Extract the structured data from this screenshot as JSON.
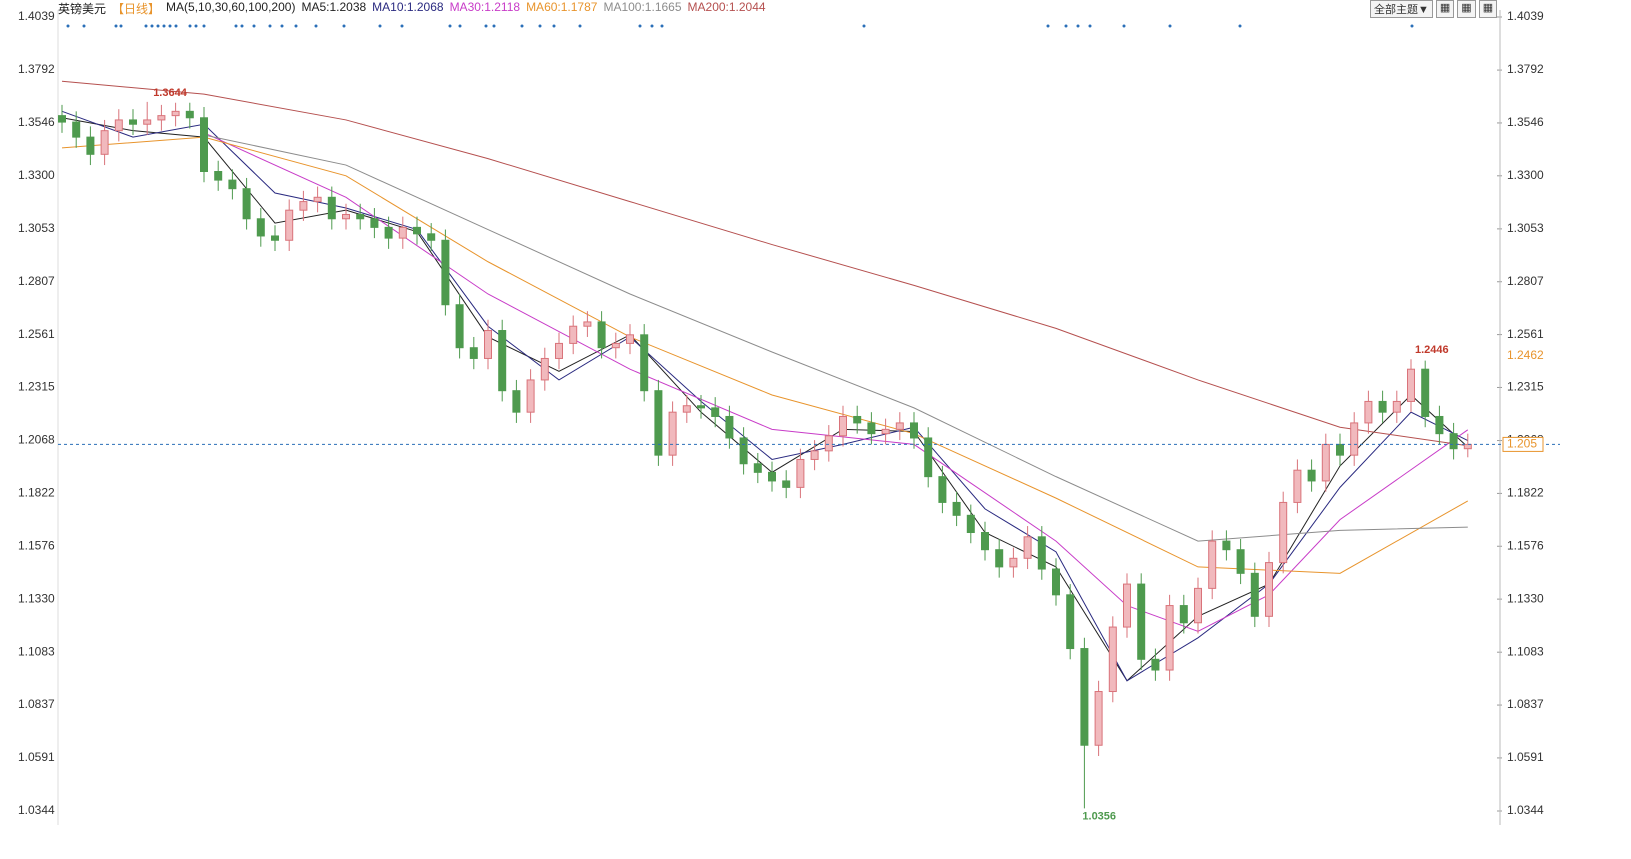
{
  "chart_data": {
    "type": "candlestick",
    "title": "英镑美元",
    "period": "【日线】",
    "ma_params": "MA(5,10,30,60,100,200)",
    "theme_button": "全部主题▼",
    "ylim": [
      1.0344,
      1.4039
    ],
    "yticks": [
      1.4039,
      1.3792,
      1.3546,
      {
        "value": 1.33,
        "label": "1.3300"
      },
      1.3053,
      1.2807,
      1.2561,
      1.2315,
      1.2068,
      1.1822,
      1.1576,
      {
        "value": 1.133,
        "label": "1.1330"
      },
      1.1083,
      1.0837,
      1.0591,
      1.0344
    ],
    "up_color": "#d9737a",
    "down_color": "#4e9a4e",
    "open": [
      1.358,
      1.355,
      1.348,
      1.34,
      1.351,
      1.356,
      1.354,
      1.356,
      1.358,
      1.36,
      1.357,
      1.332,
      1.328,
      1.324,
      1.31,
      1.302,
      1.3,
      1.314,
      1.318,
      1.32,
      1.31,
      1.312,
      1.31,
      1.306,
      1.301,
      1.306,
      1.303,
      1.3,
      1.27,
      1.25,
      1.245,
      1.258,
      1.23,
      1.22,
      1.235,
      1.245,
      1.252,
      1.26,
      1.262,
      1.25,
      1.252,
      1.256,
      1.23,
      1.2,
      1.22,
      1.223,
      1.222,
      1.218,
      1.208,
      1.196,
      1.192,
      1.188,
      1.185,
      1.198,
      1.202,
      1.209,
      1.218,
      1.215,
      1.21,
      1.212,
      1.215,
      1.208,
      1.19,
      1.178,
      1.172,
      1.164,
      1.156,
      1.148,
      1.152,
      1.162,
      1.147,
      1.135,
      1.11,
      1.065,
      1.09,
      1.12,
      1.14,
      1.105,
      1.1,
      1.13,
      1.122,
      1.138,
      1.16,
      1.156,
      1.145,
      1.125,
      1.15,
      1.178,
      1.193,
      1.188,
      1.205,
      1.2,
      1.215,
      1.225,
      1.22,
      1.225,
      1.24,
      1.218,
      1.21,
      1.203
    ],
    "high": [
      1.363,
      1.36,
      1.353,
      1.356,
      1.361,
      1.361,
      1.3644,
      1.363,
      1.364,
      1.364,
      1.362,
      1.337,
      1.333,
      1.329,
      1.315,
      1.307,
      1.319,
      1.323,
      1.325,
      1.325,
      1.317,
      1.317,
      1.315,
      1.311,
      1.311,
      1.311,
      1.308,
      1.305,
      1.275,
      1.255,
      1.263,
      1.263,
      1.235,
      1.24,
      1.25,
      1.257,
      1.265,
      1.267,
      1.267,
      1.257,
      1.261,
      1.261,
      1.235,
      1.225,
      1.228,
      1.228,
      1.227,
      1.223,
      1.213,
      1.201,
      1.197,
      1.193,
      1.203,
      1.207,
      1.214,
      1.223,
      1.223,
      1.22,
      1.217,
      1.22,
      1.22,
      1.213,
      1.195,
      1.183,
      1.177,
      1.169,
      1.161,
      1.157,
      1.167,
      1.167,
      1.152,
      1.14,
      1.115,
      1.095,
      1.125,
      1.145,
      1.145,
      1.11,
      1.135,
      1.135,
      1.143,
      1.165,
      1.165,
      1.161,
      1.15,
      1.155,
      1.183,
      1.198,
      1.198,
      1.21,
      1.21,
      1.22,
      1.23,
      1.23,
      1.23,
      1.2446,
      1.244,
      1.223,
      1.215,
      1.21
    ],
    "low": [
      1.35,
      1.343,
      1.335,
      1.335,
      1.346,
      1.349,
      1.349,
      1.351,
      1.353,
      1.352,
      1.327,
      1.323,
      1.319,
      1.305,
      1.297,
      1.295,
      1.295,
      1.309,
      1.313,
      1.305,
      1.305,
      1.305,
      1.301,
      1.296,
      1.296,
      1.298,
      1.295,
      1.265,
      1.245,
      1.24,
      1.24,
      1.225,
      1.215,
      1.215,
      1.23,
      1.24,
      1.247,
      1.255,
      1.245,
      1.245,
      1.247,
      1.225,
      1.195,
      1.195,
      1.215,
      1.217,
      1.213,
      1.203,
      1.191,
      1.187,
      1.183,
      1.18,
      1.18,
      1.193,
      1.197,
      1.204,
      1.21,
      1.205,
      1.205,
      1.207,
      1.203,
      1.185,
      1.173,
      1.167,
      1.159,
      1.151,
      1.143,
      1.143,
      1.147,
      1.142,
      1.13,
      1.105,
      1.0356,
      1.06,
      1.085,
      1.115,
      1.1,
      1.095,
      1.095,
      1.117,
      1.117,
      1.133,
      1.151,
      1.14,
      1.12,
      1.12,
      1.145,
      1.173,
      1.183,
      1.183,
      1.195,
      1.195,
      1.21,
      1.215,
      1.215,
      1.22,
      1.213,
      1.205,
      1.198,
      1.199
    ],
    "close": [
      1.355,
      1.348,
      1.34,
      1.351,
      1.356,
      1.354,
      1.356,
      1.358,
      1.36,
      1.357,
      1.332,
      1.328,
      1.324,
      1.31,
      1.302,
      1.3,
      1.314,
      1.318,
      1.32,
      1.31,
      1.312,
      1.31,
      1.306,
      1.301,
      1.306,
      1.303,
      1.3,
      1.27,
      1.25,
      1.245,
      1.258,
      1.23,
      1.22,
      1.235,
      1.245,
      1.252,
      1.26,
      1.262,
      1.25,
      1.252,
      1.256,
      1.23,
      1.2,
      1.22,
      1.223,
      1.222,
      1.218,
      1.208,
      1.196,
      1.192,
      1.188,
      1.185,
      1.198,
      1.202,
      1.209,
      1.218,
      1.215,
      1.21,
      1.212,
      1.215,
      1.208,
      1.19,
      1.178,
      1.172,
      1.164,
      1.156,
      1.148,
      1.152,
      1.162,
      1.147,
      1.135,
      1.11,
      1.065,
      1.09,
      1.12,
      1.14,
      1.105,
      1.1,
      1.13,
      1.122,
      1.138,
      1.16,
      1.156,
      1.145,
      1.125,
      1.15,
      1.178,
      1.193,
      1.188,
      1.205,
      1.2,
      1.215,
      1.225,
      1.22,
      1.225,
      1.24,
      1.218,
      1.21,
      1.203,
      1.205
    ],
    "reference_price": 1.2462,
    "reference_color": "#e8942c",
    "series": [
      {
        "name": "MA5:1.2038",
        "color": "#222222",
        "x": [
          0,
          5,
          10,
          15,
          20,
          25,
          30,
          35,
          40,
          45,
          50,
          55,
          60,
          65,
          70,
          75,
          80,
          85,
          90,
          95,
          99
        ],
        "values": [
          1.357,
          1.351,
          1.348,
          1.308,
          1.314,
          1.304,
          1.255,
          1.239,
          1.256,
          1.22,
          1.192,
          1.212,
          1.211,
          1.164,
          1.148,
          1.095,
          1.125,
          1.14,
          1.195,
          1.228,
          1.2038
        ]
      },
      {
        "name": "MA10:1.2068",
        "color": "#2a2a80",
        "x": [
          0,
          5,
          10,
          15,
          20,
          25,
          30,
          35,
          40,
          45,
          50,
          55,
          60,
          65,
          70,
          75,
          80,
          85,
          90,
          95,
          99
        ],
        "values": [
          1.36,
          1.348,
          1.354,
          1.322,
          1.315,
          1.305,
          1.26,
          1.235,
          1.255,
          1.225,
          1.198,
          1.205,
          1.213,
          1.175,
          1.155,
          1.095,
          1.115,
          1.14,
          1.185,
          1.22,
          1.2068
        ]
      },
      {
        "name": "MA30:1.2118",
        "color": "#c83cc8",
        "x": [
          10,
          20,
          30,
          40,
          50,
          60,
          70,
          75,
          80,
          85,
          90,
          99
        ],
        "values": [
          1.35,
          1.32,
          1.275,
          1.24,
          1.212,
          1.205,
          1.16,
          1.13,
          1.118,
          1.135,
          1.17,
          1.2118
        ]
      },
      {
        "name": "MA60:1.1787",
        "color": "#e8942c",
        "x": [
          0,
          10,
          20,
          30,
          40,
          50,
          60,
          70,
          80,
          90,
          99
        ],
        "values": [
          1.343,
          1.348,
          1.33,
          1.29,
          1.255,
          1.228,
          1.21,
          1.18,
          1.148,
          1.145,
          1.1787
        ]
      },
      {
        "name": "MA100:1.1665",
        "color": "#8c8c8c",
        "x": [
          10,
          20,
          30,
          40,
          50,
          60,
          70,
          80,
          90,
          99
        ],
        "values": [
          1.349,
          1.335,
          1.305,
          1.275,
          1.248,
          1.222,
          1.19,
          1.16,
          1.165,
          1.1665
        ]
      },
      {
        "name": "MA200:1.2044",
        "color": "#b5504f",
        "x": [
          0,
          10,
          20,
          30,
          40,
          50,
          60,
          70,
          80,
          90,
          99
        ],
        "values": [
          1.374,
          1.368,
          1.356,
          1.338,
          1.318,
          1.298,
          1.279,
          1.259,
          1.235,
          1.213,
          1.2044
        ]
      }
    ]
  }
}
